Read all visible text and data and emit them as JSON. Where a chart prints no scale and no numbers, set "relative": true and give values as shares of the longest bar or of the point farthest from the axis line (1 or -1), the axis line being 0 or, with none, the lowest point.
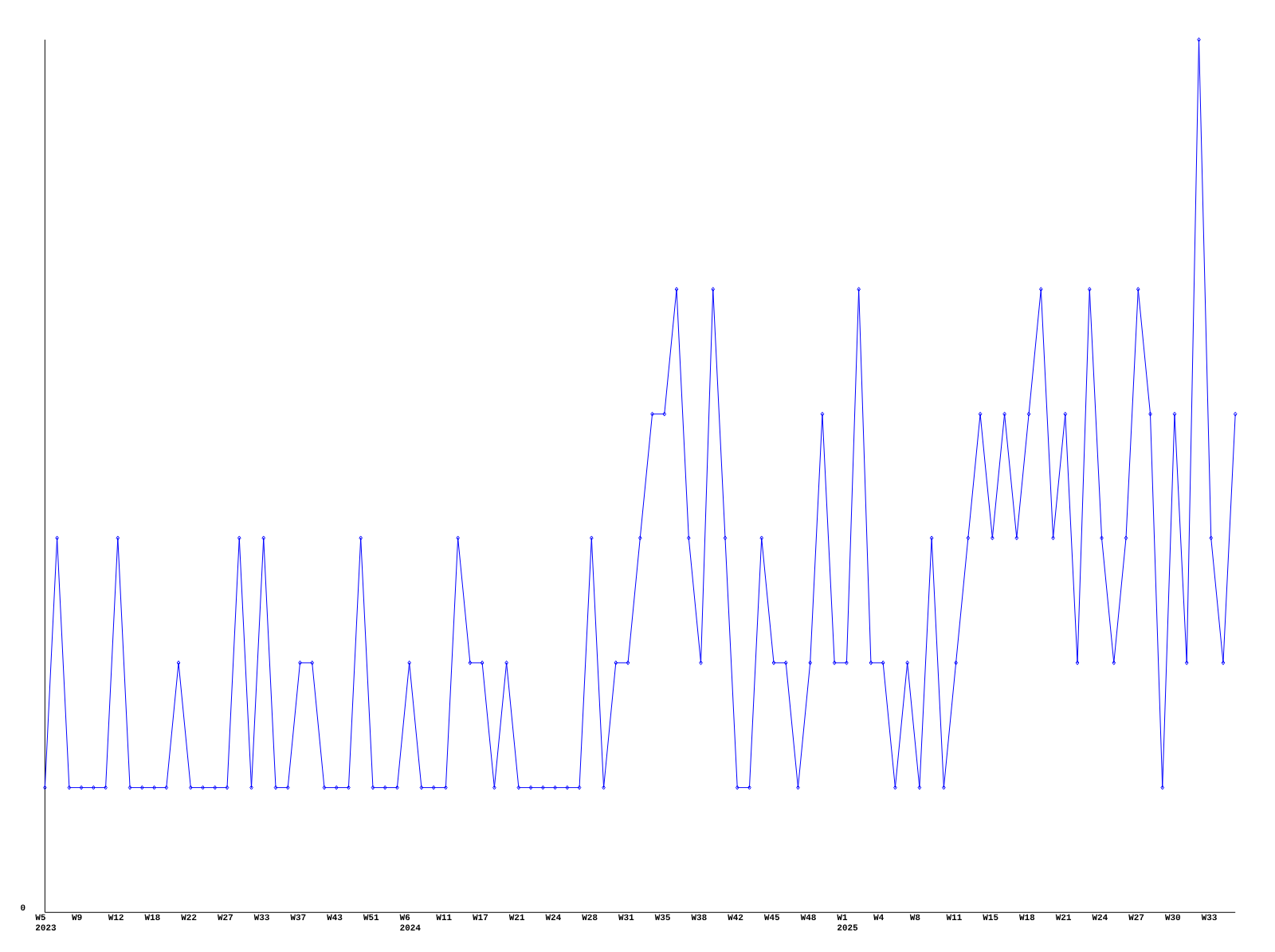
{
  "chart_data": {
    "type": "line",
    "relative": true,
    "color": "#0000ff",
    "marker": "diamond",
    "line_style": "solid",
    "grid": false,
    "annotations": [
      "0"
    ],
    "categories": [
      "W5 2023",
      null,
      null,
      "W9",
      null,
      null,
      "W12",
      null,
      null,
      "W18",
      null,
      null,
      "W22",
      null,
      null,
      "W27",
      null,
      null,
      "W33",
      null,
      null,
      "W37",
      null,
      null,
      "W43",
      null,
      null,
      "W51",
      null,
      null,
      "W6 2024",
      null,
      null,
      "W11",
      null,
      null,
      "W17",
      null,
      null,
      "W21",
      null,
      null,
      "W24",
      null,
      null,
      "W28",
      null,
      null,
      "W31",
      null,
      null,
      "W35",
      null,
      null,
      "W38",
      null,
      null,
      "W42",
      null,
      null,
      "W45",
      null,
      null,
      "W48",
      null,
      null,
      "W1 2025",
      null,
      null,
      "W4",
      null,
      null,
      "W8",
      null,
      null,
      "W11",
      null,
      null,
      "W15",
      null,
      null,
      "W18",
      null,
      null,
      "W21",
      null,
      null,
      "W24",
      null,
      null,
      "W27",
      null,
      null,
      "W30",
      null,
      null,
      "W33",
      null,
      null
    ],
    "values": [
      0.143,
      0.429,
      0.143,
      0.143,
      0.143,
      0.143,
      0.429,
      0.143,
      0.143,
      0.143,
      0.143,
      0.286,
      0.143,
      0.143,
      0.143,
      0.143,
      0.429,
      0.143,
      0.429,
      0.143,
      0.143,
      0.286,
      0.286,
      0.143,
      0.143,
      0.143,
      0.429,
      0.143,
      0.143,
      0.143,
      0.286,
      0.143,
      0.143,
      0.143,
      0.429,
      0.286,
      0.286,
      0.143,
      0.286,
      0.143,
      0.143,
      0.143,
      0.143,
      0.143,
      0.143,
      0.429,
      0.143,
      0.286,
      0.286,
      0.429,
      0.571,
      0.571,
      0.714,
      0.429,
      0.286,
      0.714,
      0.429,
      0.143,
      0.143,
      0.429,
      0.286,
      0.286,
      0.143,
      0.286,
      0.571,
      0.286,
      0.286,
      0.714,
      0.286,
      0.286,
      0.143,
      0.286,
      0.143,
      0.429,
      0.143,
      0.286,
      0.429,
      0.571,
      0.429,
      0.571,
      0.429,
      0.571,
      0.714,
      0.429,
      0.571,
      0.286,
      0.714,
      0.429,
      0.286,
      0.429,
      0.714,
      0.571,
      0.143,
      0.571,
      0.286,
      1,
      0.429,
      0.286,
      0.571
    ]
  }
}
